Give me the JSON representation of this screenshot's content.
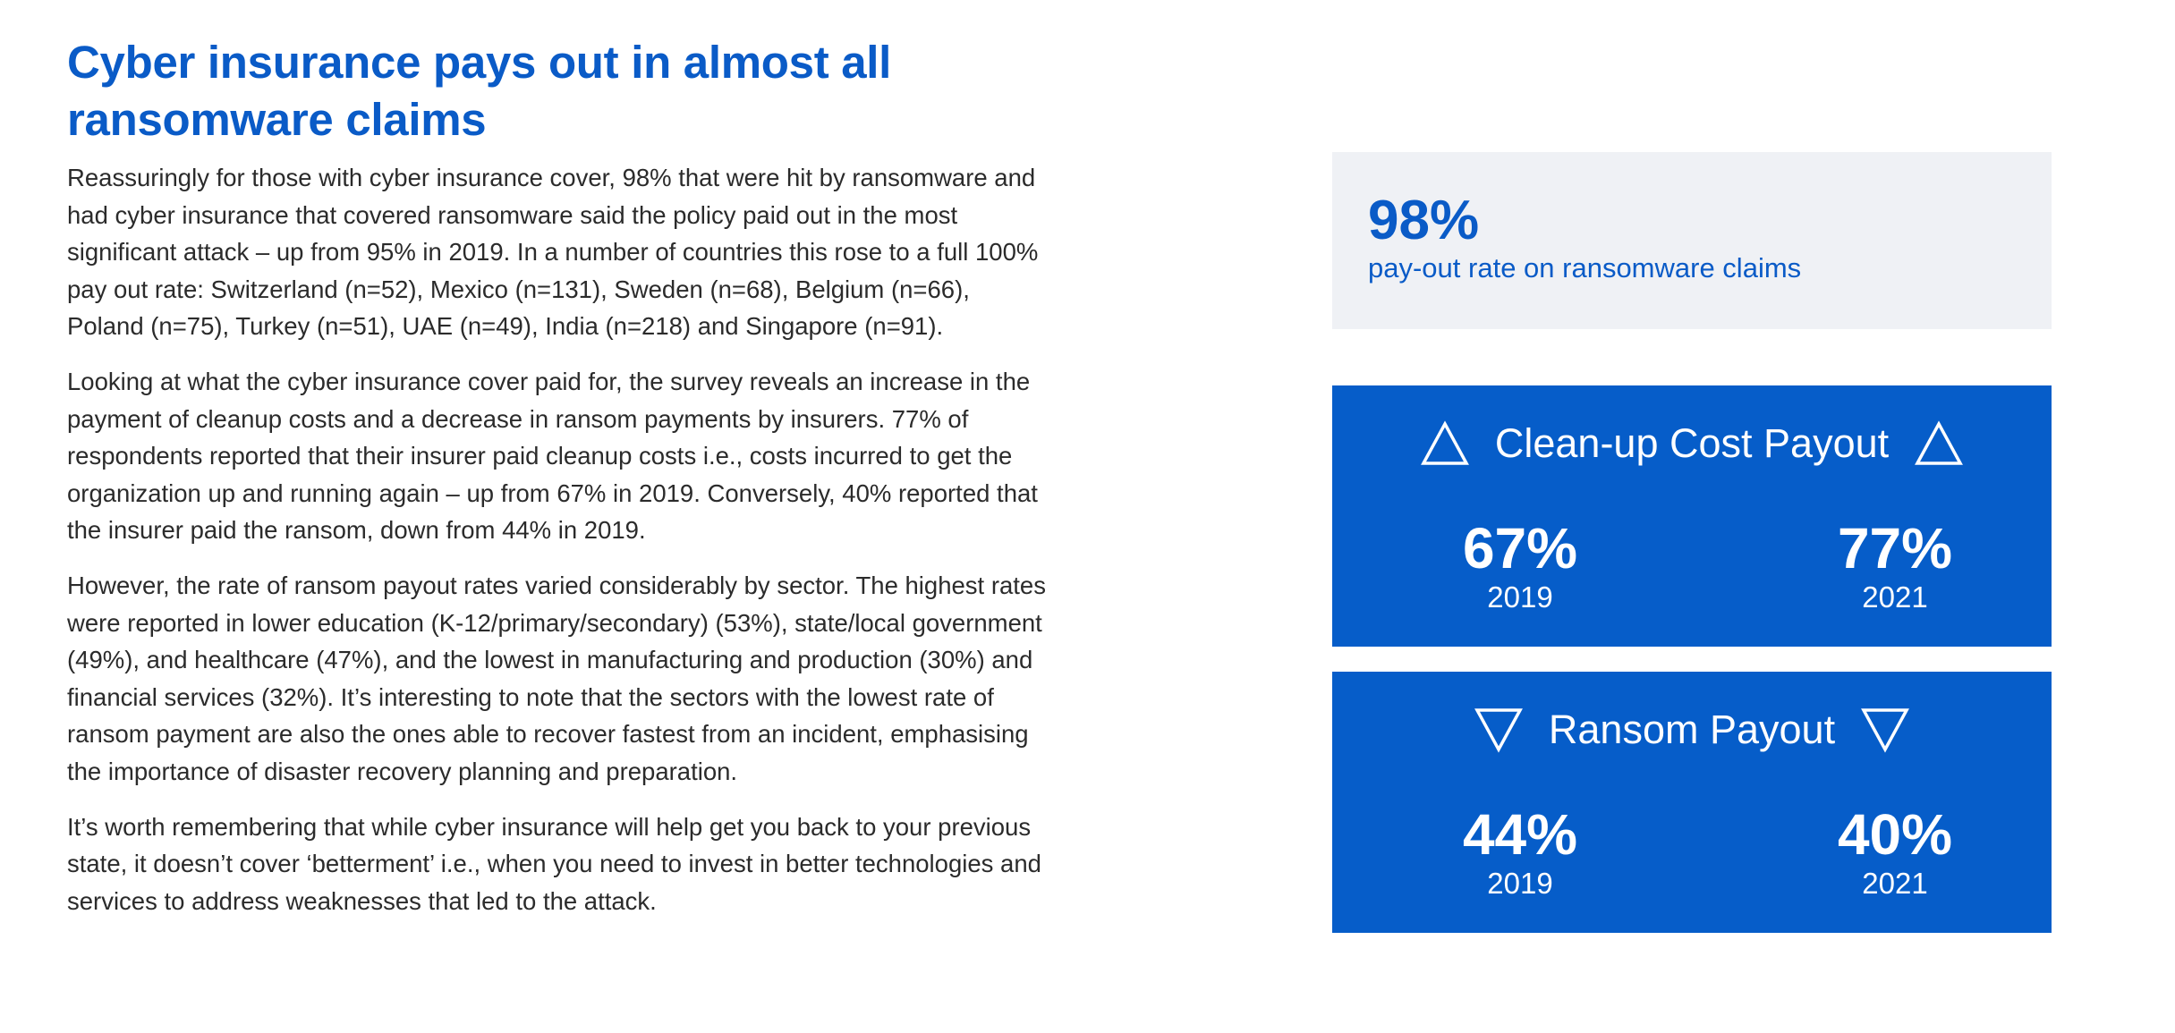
{
  "heading": {
    "line1": "Cyber insurance pays out in almost all",
    "line2": "ransomware claims"
  },
  "paragraphs": [
    "Reassuringly for those with cyber insurance cover, 98% that were hit by ransomware and had cyber insurance that covered ransomware said the policy paid out in the most significant attack – up from 95% in 2019. In a number of countries this rose to a full 100% pay out rate: Switzerland (n=52), Mexico (n=131), Sweden (n=68), Belgium (n=66), Poland (n=75), Turkey (n=51), UAE (n=49), India (n=218) and Singapore (n=91).",
    "Looking at what the cyber insurance cover paid for, the survey reveals an increase in the payment of cleanup costs and a decrease in ransom payments by insurers. 77% of respondents reported that their insurer paid cleanup costs i.e., costs incurred to get the organization up and running again – up from 67% in 2019. Conversely, 40% reported that the insurer paid the ransom, down from 44% in 2019.",
    "However, the rate of ransom payout rates varied considerably by sector. The highest rates were reported in lower education (K-12/primary/secondary) (53%), state/local government (49%), and healthcare (47%), and the lowest in manufacturing and production (30%) and financial services (32%). It’s interesting to note that the sectors with the lowest rate of ransom payment are also the ones able to recover fastest from an incident, emphasising the importance of disaster recovery planning and preparation.",
    "It’s worth remembering that while cyber insurance will help get you back to your previous state, it doesn’t cover ‘betterment’ i.e., when you need to invest in better technologies and services to address weaknesses that led to the attack."
  ],
  "payout_stat": {
    "value": "98%",
    "label": "pay-out rate on ransomware claims"
  },
  "cleanup_panel": {
    "title": "Clean-up Cost Payout",
    "icon": "triangle-up-icon",
    "left": {
      "percent": "67%",
      "year": "2019"
    },
    "right": {
      "percent": "77%",
      "year": "2021"
    }
  },
  "ransom_panel": {
    "title": "Ransom Payout",
    "icon": "triangle-down-icon",
    "left": {
      "percent": "44%",
      "year": "2019"
    },
    "right": {
      "percent": "40%",
      "year": "2021"
    }
  },
  "colors": {
    "brand_blue": "#065dc9",
    "heading_blue": "#0a5bc7",
    "stat_box_bg": "#eff1f5",
    "body_text": "#2b2b2b"
  }
}
